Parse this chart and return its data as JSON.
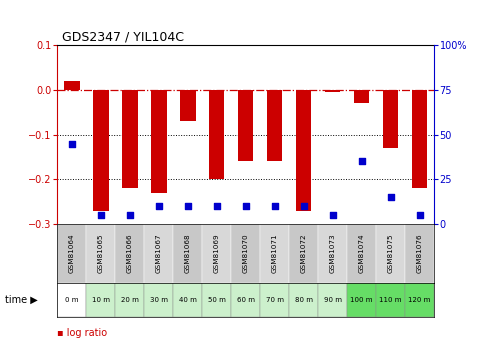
{
  "title": "GDS2347 / YIL104C",
  "samples": [
    "GSM81064",
    "GSM81065",
    "GSM81066",
    "GSM81067",
    "GSM81068",
    "GSM81069",
    "GSM81070",
    "GSM81071",
    "GSM81072",
    "GSM81073",
    "GSM81074",
    "GSM81075",
    "GSM81076"
  ],
  "time_labels": [
    "0 m",
    "10 m",
    "20 m",
    "30 m",
    "40 m",
    "50 m",
    "60 m",
    "70 m",
    "80 m",
    "90 m",
    "100 m",
    "110 m",
    "120 m"
  ],
  "log_ratio": [
    0.02,
    -0.27,
    -0.22,
    -0.23,
    -0.07,
    -0.2,
    -0.16,
    -0.16,
    -0.27,
    -0.005,
    -0.03,
    -0.13,
    -0.22
  ],
  "percentile_rank": [
    45,
    5,
    5,
    10,
    10,
    10,
    10,
    10,
    10,
    5,
    35,
    15,
    5
  ],
  "bar_color": "#cc0000",
  "dot_color": "#0000cc",
  "ylim_left": [
    -0.3,
    0.1
  ],
  "ylim_right": [
    0,
    100
  ],
  "yticks_left": [
    -0.3,
    -0.2,
    -0.1,
    0,
    0.1
  ],
  "yticks_right": [
    0,
    25,
    50,
    75,
    100
  ],
  "hline_color": "#cc0000",
  "grid_values": [
    -0.1,
    -0.2
  ],
  "sample_bg_colors": [
    "#c8c8c8",
    "#d8d8d8",
    "#c8c8c8",
    "#d8d8d8",
    "#c8c8c8",
    "#d8d8d8",
    "#c8c8c8",
    "#d8d8d8",
    "#c8c8c8",
    "#d8d8d8",
    "#c8c8c8",
    "#d8d8d8",
    "#c8c8c8"
  ],
  "time_bg_colors": [
    "#ffffff",
    "#ccf0cc",
    "#ccf0cc",
    "#ccf0cc",
    "#ccf0cc",
    "#ccf0cc",
    "#ccf0cc",
    "#ccf0cc",
    "#ccf0cc",
    "#ccf0cc",
    "#66dd66",
    "#66dd66",
    "#66dd66"
  ],
  "fig_bg": "#ffffff"
}
